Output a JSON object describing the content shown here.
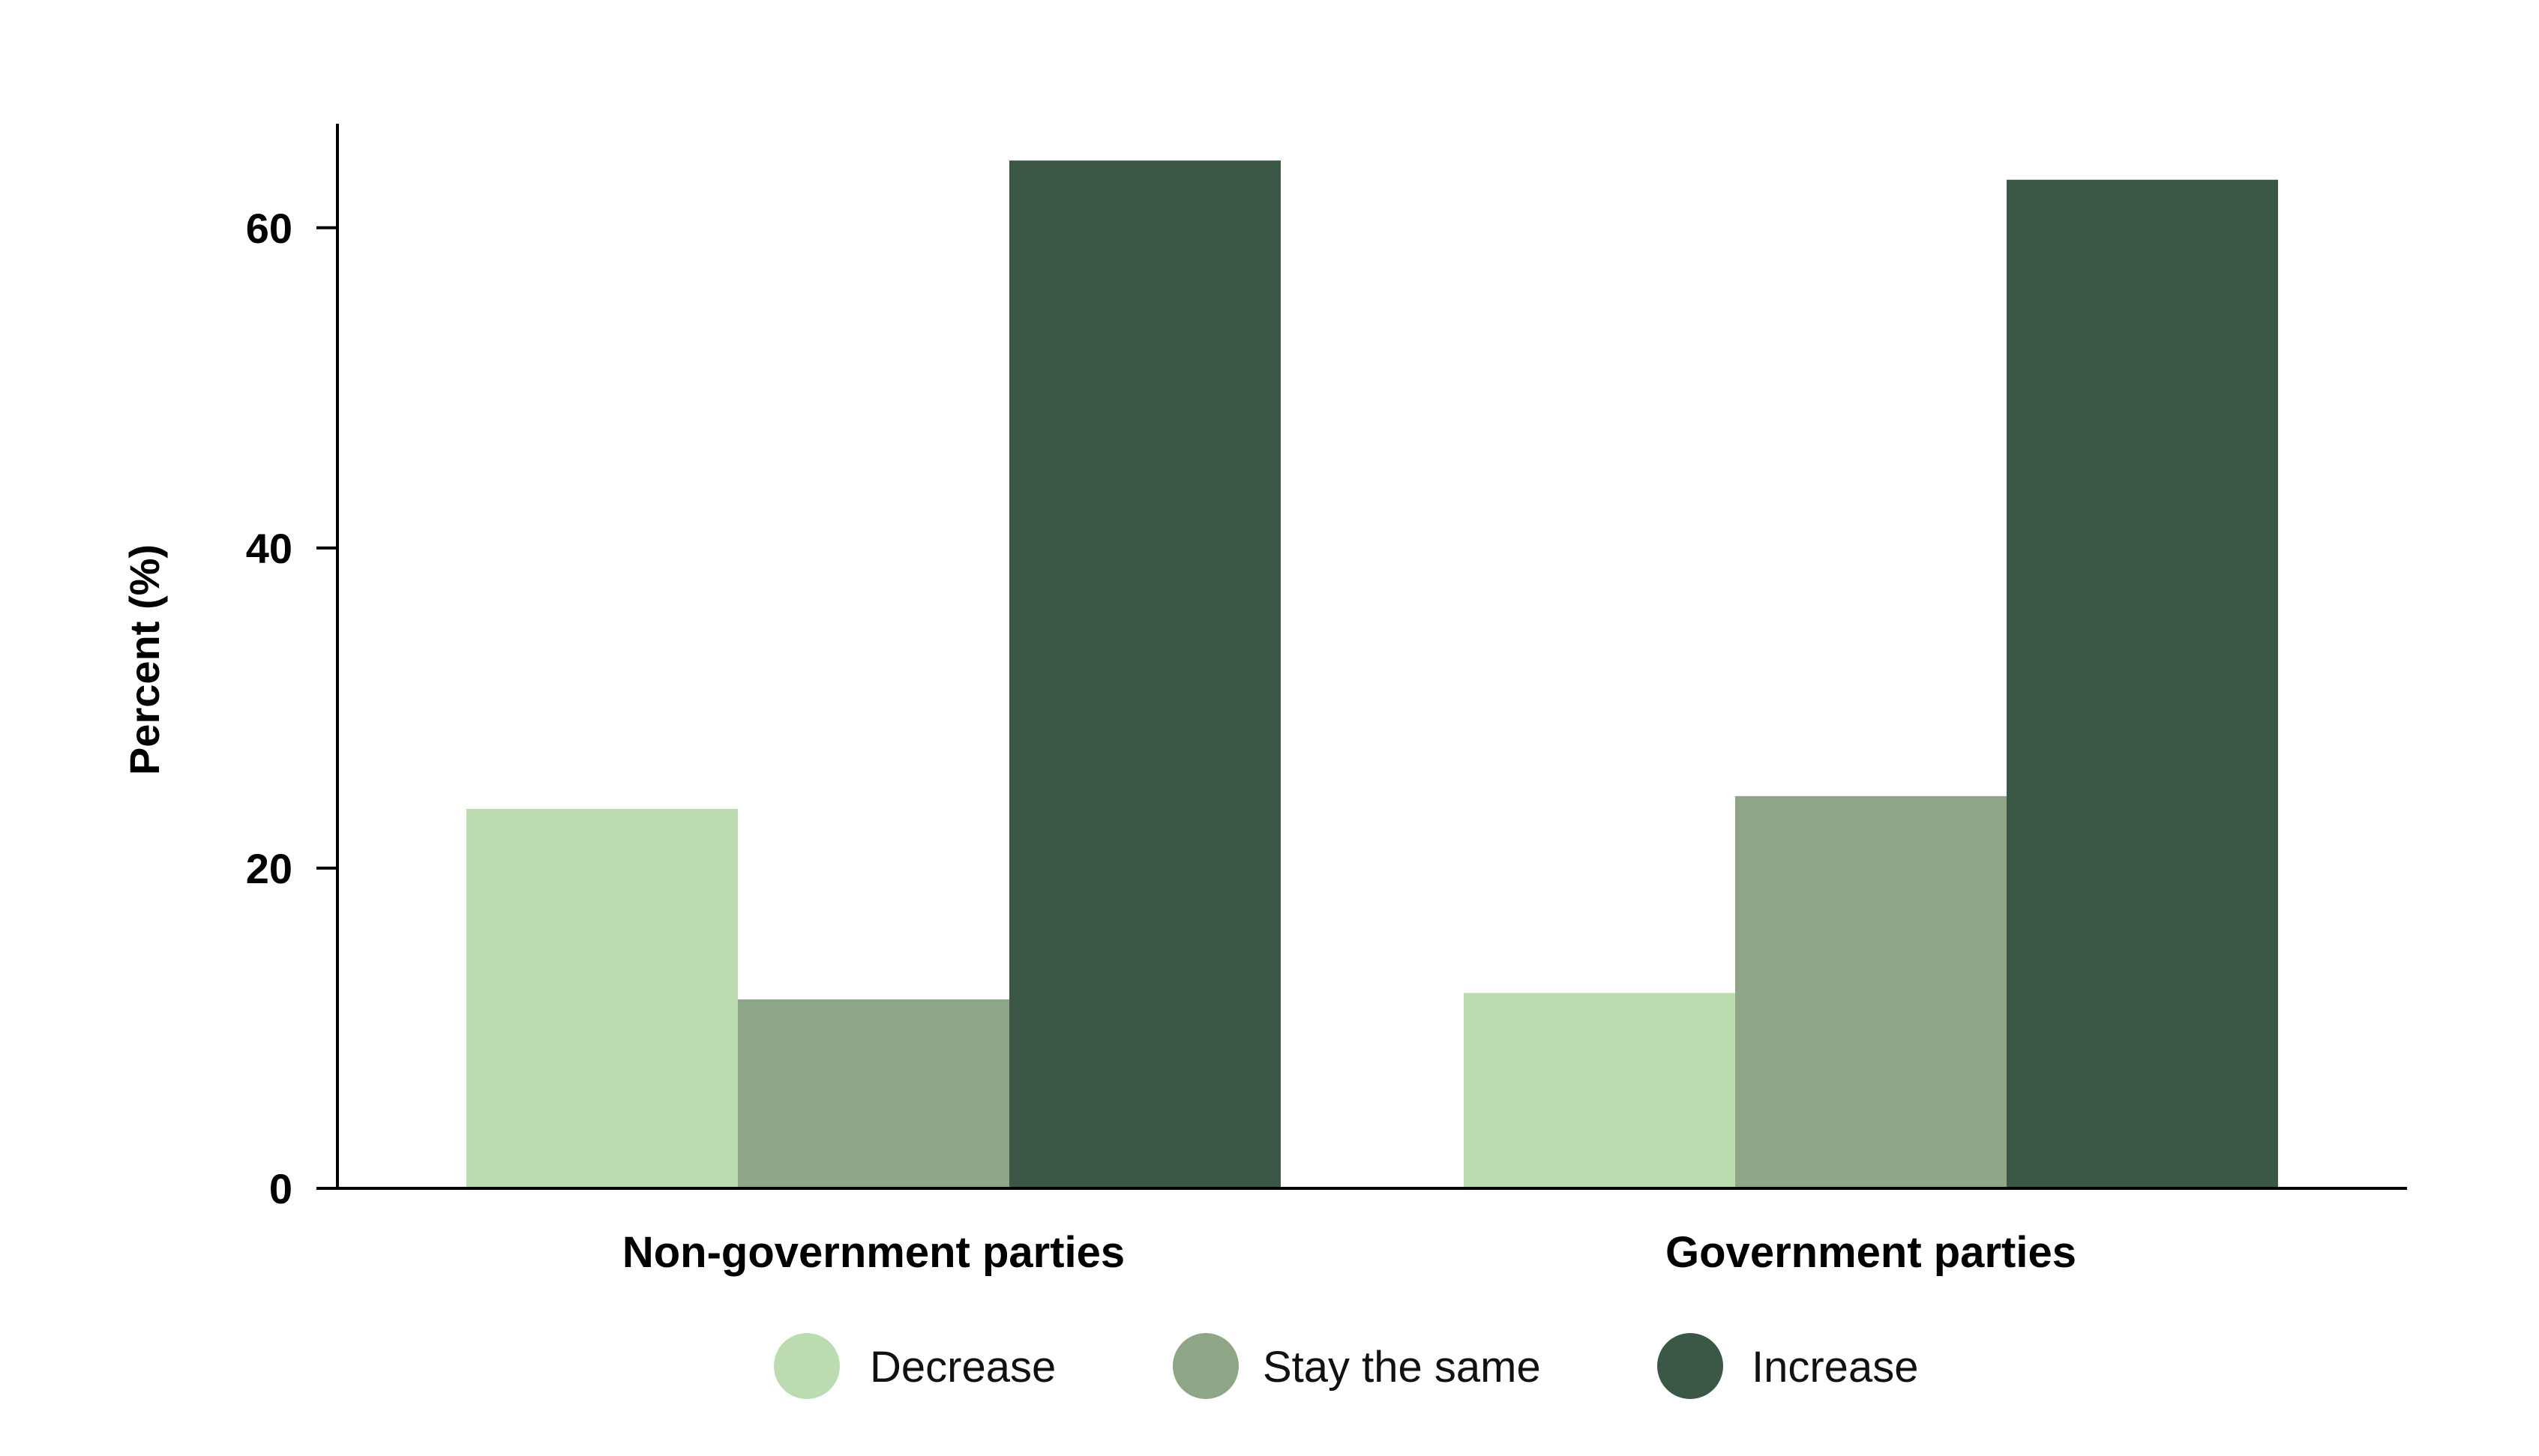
{
  "chart_data": {
    "type": "bar",
    "title": "",
    "xlabel": "",
    "ylabel": "Percent (%)",
    "categories": [
      "Non-government parties",
      "Government parties"
    ],
    "series": [
      {
        "name": "Decrease",
        "values": [
          23.7,
          12.2
        ],
        "color": "#bbdbb0"
      },
      {
        "name": "Stay the same",
        "values": [
          11.8,
          24.5
        ],
        "color": "#8ea685"
      },
      {
        "name": "Increase",
        "values": [
          64.2,
          63.0
        ],
        "color": "#3a5845"
      }
    ],
    "ylim": [
      0,
      66.5
    ],
    "yticks": [
      0,
      20,
      40,
      60
    ],
    "grid": false,
    "legend": "bottom-center"
  }
}
